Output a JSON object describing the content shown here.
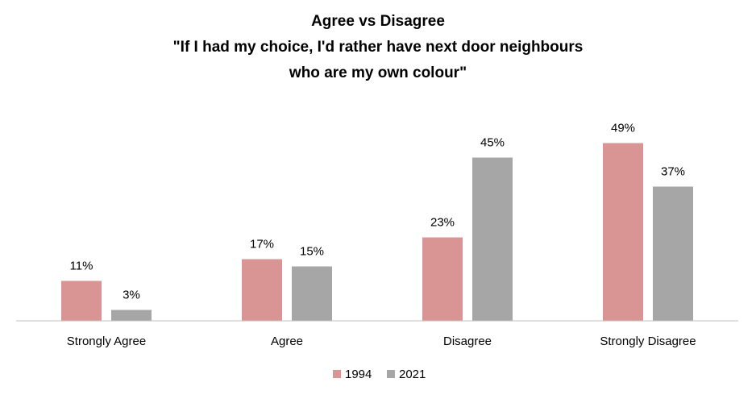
{
  "chart_data": {
    "type": "bar",
    "title_lines": [
      "Agree vs Disagree",
      "\"If I had my choice, I'd rather have next door neighbours",
      "who are my own colour\""
    ],
    "categories": [
      "Strongly Agree",
      "Agree",
      "Disagree",
      "Strongly Disagree"
    ],
    "series": [
      {
        "name": "1994",
        "values": [
          11,
          17,
          23,
          49
        ],
        "labels": [
          "11%",
          "17%",
          "23%",
          "49%"
        ],
        "color": "#d99594"
      },
      {
        "name": "2021",
        "values": [
          3,
          15,
          45,
          37
        ],
        "labels": [
          "3%",
          "15%",
          "45%",
          "37%"
        ],
        "color": "#a6a6a6"
      }
    ],
    "unit": "%",
    "ylim": [
      0,
      50
    ],
    "grid": false,
    "legend_position": "bottom",
    "axis_color": "#bfbfbf"
  }
}
